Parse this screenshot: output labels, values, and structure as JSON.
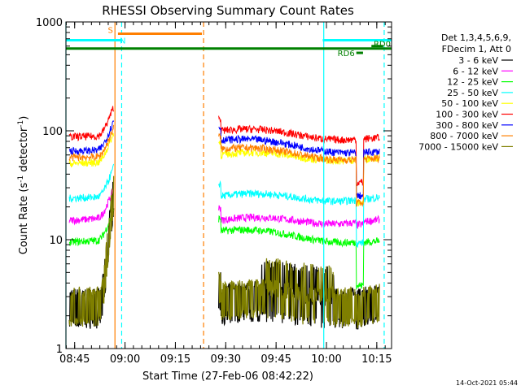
{
  "chart_data": {
    "type": "line",
    "title": "RHESSI Observing Summary Count Rates",
    "xlabel": "Start Time (27-Feb-06 08:42:22)",
    "ylabel_main": "Count Rate (s",
    "ylabel_sup": "-1",
    "ylabel_mid": " detector",
    "ylabel_end": ")",
    "yscale": "log",
    "ylim": [
      1,
      1000
    ],
    "xlim_minutes": [
      0,
      97
    ],
    "x_ticks": [
      {
        "m": 2.6,
        "label": "08:45"
      },
      {
        "m": 17.6,
        "label": "09:00"
      },
      {
        "m": 32.6,
        "label": "09:15"
      },
      {
        "m": 47.6,
        "label": "09:30"
      },
      {
        "m": 62.6,
        "label": "09:45"
      },
      {
        "m": 77.6,
        "label": "10:00"
      },
      {
        "m": 92.6,
        "label": "10:15"
      }
    ],
    "y_ticks": [
      {
        "v": 1,
        "label": "1"
      },
      {
        "v": 10,
        "label": "10"
      },
      {
        "v": 100,
        "label": "100"
      },
      {
        "v": 1000,
        "label": "1000"
      }
    ],
    "legend_header": [
      "Det 1,3,4,5,6,9,",
      "FDecim 1, Att 0"
    ],
    "series": [
      {
        "name": "3 - 6 keV",
        "color": "#000000",
        "pre": [
          2.6,
          2.6
        ],
        "post": [
          2.6,
          2.6
        ]
      },
      {
        "name": "6 - 12 keV",
        "color": "#ff00ff",
        "pre": [
          15,
          16
        ],
        "post": [
          15,
          15
        ]
      },
      {
        "name": "12 - 25 keV",
        "color": "#00ff00",
        "pre": [
          9.5,
          10
        ],
        "post": [
          12,
          9.5
        ]
      },
      {
        "name": "25 - 50 keV",
        "color": "#00ffff",
        "pre": [
          24,
          25
        ],
        "post": [
          25,
          24
        ]
      },
      {
        "name": "50 - 100 keV",
        "color": "#ffff00",
        "pre": [
          50,
          52
        ],
        "post": [
          60,
          56
        ]
      },
      {
        "name": "100 - 300 keV",
        "color": "#ff0000",
        "pre": [
          88,
          90
        ],
        "post": [
          100,
          85
        ]
      },
      {
        "name": "300 - 800 keV",
        "color": "#0000ff",
        "pre": [
          65,
          67
        ],
        "post": [
          82,
          63
        ]
      },
      {
        "name": "800 - 7000 keV",
        "color": "#ff7f00",
        "pre": [
          57,
          58
        ],
        "post": [
          68,
          55
        ]
      },
      {
        "name": "7000 - 15000 keV",
        "color": "#7f7f00",
        "pre": [
          2.7,
          2.7
        ],
        "post": [
          2.8,
          2.6
        ]
      }
    ],
    "segments": {
      "pre_start": 1,
      "pre_end": 14.2,
      "post_start": 45.5,
      "post_end": 93.5,
      "dip_start": 86.5,
      "dip_end": 88.6
    },
    "intervals": [
      {
        "label": "S",
        "color": "#ff7f00",
        "start": 15.5,
        "end": 40.5,
        "value": 780
      },
      {
        "label": "N",
        "color": "#00ffff",
        "start": 0,
        "end": 16.5,
        "value": 680
      },
      {
        "label": "",
        "color": "#00ffff",
        "start": 76.5,
        "end": 97,
        "value": 680
      },
      {
        "label": "",
        "color": "#008000",
        "start": 0,
        "end": 97,
        "value": 570
      },
      {
        "label": "RD0",
        "color": "#008000",
        "start": 91,
        "end": 94.5,
        "value": 600
      },
      {
        "label": "RD6",
        "color": "#008000",
        "start": 86.5,
        "end": 88.5,
        "value": 520
      }
    ],
    "vlines": [
      {
        "m": 0,
        "color": "#00ffff",
        "dashed": false
      },
      {
        "m": 14.6,
        "color": "#ff7f00",
        "dashed": false
      },
      {
        "m": 16.6,
        "color": "#00ffff",
        "dashed": true
      },
      {
        "m": 41.0,
        "color": "#ff7f00",
        "dashed": true
      },
      {
        "m": 76.8,
        "color": "#00ffff",
        "dashed": false
      },
      {
        "m": 94.8,
        "color": "#00ffff",
        "dashed": true
      }
    ],
    "timestamp": "14-Oct-2021 05:44"
  }
}
